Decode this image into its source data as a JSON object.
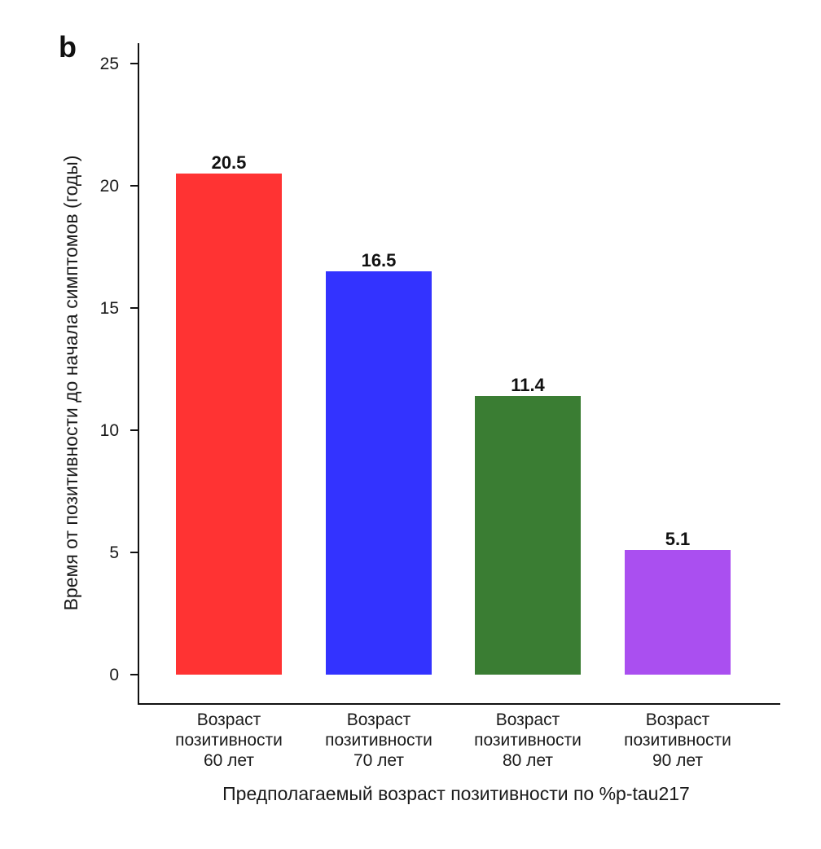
{
  "panel_letter": "b",
  "chart_data": {
    "type": "bar",
    "categories": [
      [
        "Возраст",
        "позитивности",
        "60 лет"
      ],
      [
        "Возраст",
        "позитивности",
        "70 лет"
      ],
      [
        "Возраст",
        "позитивности",
        "80 лет"
      ],
      [
        "Возраст",
        "позитивности",
        "90 лет"
      ]
    ],
    "values": [
      20.5,
      16.5,
      11.4,
      5.1
    ],
    "data_labels": [
      "20.5",
      "16.5",
      "11.4",
      "5.1"
    ],
    "colors": [
      "#ff3333",
      "#3333ff",
      "#3a7d33",
      "#aa4ff0"
    ],
    "xlabel": "Предполагаемый возраст позитивности по %p-tau217",
    "ylabel": "Время от позитивности до начала симптомов (годы)",
    "ylim": [
      0,
      25
    ],
    "yticks": [
      0,
      5,
      10,
      15,
      20,
      25
    ],
    "grid": false,
    "legend": "none"
  }
}
